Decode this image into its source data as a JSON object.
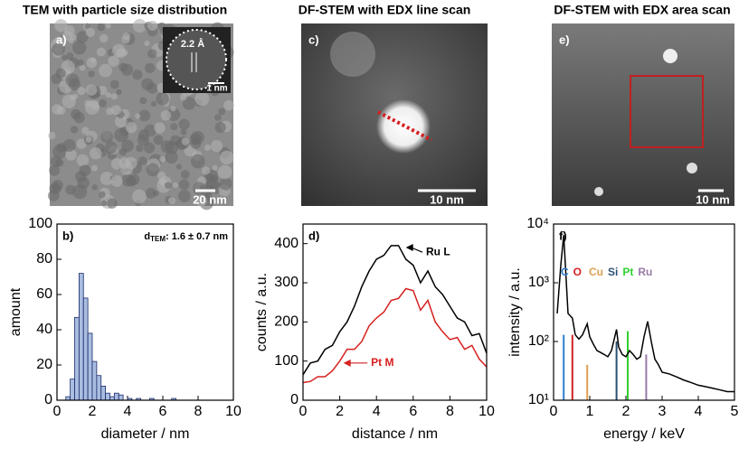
{
  "columns": [
    "TEM with particle size distribution",
    "DF-STEM with EDX line scan",
    "DF-STEM with EDX area scan"
  ],
  "images": [
    {
      "label": "a)",
      "scale_bar": "20 nm",
      "inset": {
        "lattice": "2.2 Å",
        "scale_bar": "1 nm"
      }
    },
    {
      "label": "c)",
      "scale_bar": "10 nm"
    },
    {
      "label": "e)",
      "scale_bar": "10 nm"
    }
  ],
  "chart_data": [
    {
      "type": "histogram",
      "panel_label": "b)",
      "annotation": {
        "symbol": "d",
        "subscript": "TEM",
        "text": ": 1.6 ± 0.7 nm"
      },
      "x_label": "diameter / nm",
      "y_label": "amount",
      "bins": [
        0.5,
        0.75,
        1.0,
        1.25,
        1.5,
        1.75,
        2.0,
        2.25,
        2.5,
        2.75,
        3.0,
        3.25,
        3.5,
        3.75,
        4.0,
        4.25,
        4.5,
        4.75,
        5.0,
        5.25,
        5.5,
        5.75,
        6.0,
        6.25,
        6.5,
        6.75
      ],
      "values": [
        2,
        12,
        47,
        72,
        58,
        38,
        22,
        14,
        8,
        4,
        2,
        4,
        3,
        0,
        1,
        0,
        1,
        0,
        0,
        1,
        0,
        0,
        0,
        0,
        1
      ],
      "color": "#a9bde0",
      "edge_color": "#1a2a6c",
      "xlim": [
        0,
        10
      ],
      "xticks": [
        0,
        2,
        4,
        6,
        8,
        10
      ],
      "ylim": [
        0,
        100
      ],
      "yticks": [
        0,
        20,
        40,
        60,
        80,
        100
      ]
    },
    {
      "type": "line",
      "panel_label": "d)",
      "x_label": "distance / nm",
      "y_label": "counts / a.u.",
      "x": [
        0,
        0.4,
        0.8,
        1.2,
        1.6,
        2.0,
        2.4,
        2.8,
        3.2,
        3.6,
        4.0,
        4.4,
        4.8,
        5.2,
        5.6,
        6.0,
        6.4,
        6.8,
        7.2,
        7.6,
        8.0,
        8.4,
        8.8,
        9.2,
        9.6,
        10.0
      ],
      "series": [
        {
          "name": "Ru L",
          "color": "#000000",
          "values": [
            65,
            95,
            100,
            130,
            140,
            175,
            200,
            240,
            290,
            330,
            360,
            370,
            395,
            395,
            360,
            345,
            300,
            330,
            290,
            270,
            240,
            210,
            200,
            165,
            170,
            120
          ]
        },
        {
          "name": "Pt M",
          "color": "#d62020",
          "values": [
            45,
            48,
            60,
            60,
            75,
            100,
            130,
            130,
            150,
            190,
            210,
            225,
            255,
            260,
            285,
            280,
            230,
            255,
            200,
            175,
            155,
            160,
            130,
            140,
            105,
            85
          ]
        }
      ],
      "xlim": [
        0,
        10
      ],
      "xticks": [
        0,
        2,
        4,
        6,
        8,
        10
      ],
      "ylim": [
        0,
        450
      ],
      "yticks": [
        0,
        100,
        200,
        300,
        400
      ]
    },
    {
      "type": "line",
      "panel_label": "f)",
      "log_y": true,
      "x_label": "energy / keV",
      "y_label": "intensity / a.u.",
      "x": [
        0.1,
        0.2,
        0.28,
        0.4,
        0.52,
        0.6,
        0.7,
        0.8,
        0.93,
        1.0,
        1.1,
        1.2,
        1.3,
        1.4,
        1.5,
        1.6,
        1.74,
        1.8,
        1.9,
        2.0,
        2.1,
        2.2,
        2.3,
        2.4,
        2.5,
        2.6,
        2.7,
        2.8,
        2.9,
        3.0,
        3.2,
        3.4,
        3.6,
        3.8,
        4.0,
        4.2,
        4.4,
        4.6,
        4.8,
        5.0
      ],
      "series": [
        {
          "color": "#000000",
          "values": [
            300,
            2000,
            6500,
            300,
            250,
            130,
            110,
            130,
            200,
            120,
            90,
            70,
            65,
            60,
            55,
            70,
            160,
            80,
            60,
            55,
            70,
            60,
            50,
            55,
            120,
            220,
            100,
            50,
            40,
            30,
            28,
            25,
            22,
            20,
            18,
            17,
            16,
            15,
            14,
            14
          ]
        }
      ],
      "elements": [
        {
          "name": "C",
          "color": "#2f7fd0",
          "x": 0.28,
          "value": 130
        },
        {
          "name": "O",
          "color": "#d62020",
          "x": 0.52,
          "value": 130
        },
        {
          "name": "Cu",
          "color": "#e0a050",
          "x": 0.93,
          "value": 40
        },
        {
          "name": "Si",
          "color": "#2a5070",
          "x": 1.74,
          "value": 100
        },
        {
          "name": "Pt",
          "color": "#30d030",
          "x": 2.05,
          "value": 150
        },
        {
          "name": "Ru",
          "color": "#9a7aa8",
          "x": 2.56,
          "value": 60
        }
      ],
      "xlim": [
        0,
        5
      ],
      "xticks": [
        0,
        1,
        2,
        3,
        4,
        5
      ],
      "ylim": [
        10,
        10000
      ],
      "yticks": [
        {
          "value": 10,
          "label": "10¹"
        },
        {
          "value": 100,
          "label": "10²"
        },
        {
          "value": 1000,
          "label": "10³"
        },
        {
          "value": 10000,
          "label": "10⁴"
        }
      ]
    }
  ]
}
